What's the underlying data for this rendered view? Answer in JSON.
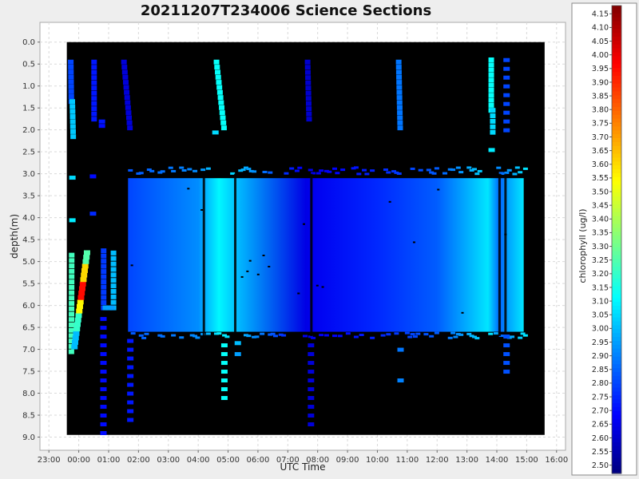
{
  "chart_data": {
    "type": "heatmap",
    "title": "20211207T234006 Science Sections",
    "xlabel": "UTC Time",
    "ylabel": "depth(m)",
    "colorbar_label": "chlorophyll (ug/l)",
    "x_ticks": [
      "23:00",
      "00:00",
      "01:00",
      "02:00",
      "03:00",
      "04:00",
      "05:00",
      "06:00",
      "07:00",
      "08:00",
      "09:00",
      "10:00",
      "11:00",
      "12:00",
      "13:00",
      "14:00",
      "15:00",
      "16:00"
    ],
    "x_range_hours": [
      -1.3,
      16.3
    ],
    "y_ticks": [
      "0.0",
      "0.5",
      "1.0",
      "1.5",
      "2.0",
      "2.5",
      "3.0",
      "3.5",
      "4.0",
      "4.5",
      "5.0",
      "5.5",
      "6.0",
      "6.5",
      "7.0",
      "7.5",
      "8.0",
      "8.5",
      "9.0"
    ],
    "y_range_m": [
      -0.45,
      9.3
    ],
    "colorbar_ticks": [
      "2.50",
      "2.55",
      "2.60",
      "2.65",
      "2.70",
      "2.75",
      "2.80",
      "2.85",
      "2.90",
      "2.95",
      "3.00",
      "3.05",
      "3.10",
      "3.15",
      "3.20",
      "3.25",
      "3.30",
      "3.35",
      "3.40",
      "3.45",
      "3.50",
      "3.55",
      "3.60",
      "3.65",
      "3.70",
      "3.75",
      "3.80",
      "3.85",
      "3.90",
      "3.95",
      "4.00",
      "4.05",
      "4.10",
      "4.15"
    ],
    "colorbar_range": [
      2.47,
      4.18
    ],
    "colormap": "jet",
    "grid": true,
    "background_color": "#000000",
    "section_band": {
      "depth_range": [
        3.1,
        6.6
      ],
      "ends": [
        {
          "hour": 1.65,
          "value": 2.83,
          "start_value": 2.8
        },
        {
          "hour": 4.0,
          "value": 2.92
        },
        {
          "hour": 4.7,
          "value": 3.1
        },
        {
          "hour": 5.3,
          "value": 3.0
        },
        {
          "hour": 7.6,
          "value": 2.64
        },
        {
          "hour": 7.9,
          "value": 2.66
        },
        {
          "hour": 10.0,
          "value": 2.75
        },
        {
          "hour": 12.0,
          "value": 2.84
        },
        {
          "hour": 13.7,
          "value": 3.07
        },
        {
          "hour": 14.1,
          "value": 2.85
        },
        {
          "hour": 14.35,
          "value": 2.95
        },
        {
          "hour": 14.9,
          "value": 3.07
        }
      ]
    },
    "profiles": [
      {
        "hour_start": -0.28,
        "hour_end": -0.26,
        "depth_start": 0.4,
        "depth_end": 1.3,
        "value": 2.8
      },
      {
        "hour_start": -0.23,
        "hour_end": -0.2,
        "depth_start": 1.3,
        "depth_end": 2.1,
        "value": 3.02
      },
      {
        "hour_start": -0.25,
        "hour_end": -0.26,
        "depth_start": 4.8,
        "depth_end": 7.0,
        "value": 3.22
      },
      {
        "hour_start": -0.17,
        "hour_end": 0.27,
        "depth_start": 7.0,
        "depth_end": 4.75,
        "value": 3.5,
        "gradient": [
          3.0,
          3.2,
          3.55,
          3.95,
          3.6,
          3.25
        ]
      },
      {
        "hour_start": 0.5,
        "hour_end": 0.5,
        "depth_start": 0.4,
        "depth_end": 1.7,
        "value": 2.72
      },
      {
        "hour_start": 0.82,
        "hour_end": 0.82,
        "depth_start": 4.7,
        "depth_end": 6.0,
        "value": 2.78
      },
      {
        "hour_start": 1.15,
        "hour_end": 1.15,
        "depth_start": 4.75,
        "depth_end": 6.0,
        "value": 3.0
      },
      {
        "hour_start": 0.88,
        "hour_end": 1.1,
        "depth_start": 6.0,
        "depth_end": 6.0,
        "value": 2.95
      },
      {
        "hour_start": 1.5,
        "hour_end": 1.7,
        "depth_start": 0.4,
        "depth_end": 1.9,
        "value": 2.62
      },
      {
        "hour_start": 4.6,
        "hour_end": 4.85,
        "depth_start": 0.4,
        "depth_end": 1.9,
        "value": 3.12
      },
      {
        "hour_start": 7.65,
        "hour_end": 7.7,
        "depth_start": 0.4,
        "depth_end": 1.7,
        "value": 2.6
      },
      {
        "hour_start": 10.7,
        "hour_end": 10.75,
        "depth_start": 0.4,
        "depth_end": 1.9,
        "value": 2.88
      },
      {
        "hour_start": 13.8,
        "hour_end": 13.8,
        "depth_start": 0.35,
        "depth_end": 1.5,
        "value": 3.12
      },
      {
        "hour_start": 13.85,
        "hour_end": 13.85,
        "depth_start": 1.5,
        "depth_end": 2.0,
        "value": 3.05
      }
    ],
    "dots": [
      {
        "hour": -0.24,
        "depth": 3.08,
        "value": 3.05
      },
      {
        "hour": -0.24,
        "depth": 4.05,
        "value": 3.08
      },
      {
        "hour": 0.45,
        "depth": 3.05,
        "value": 2.7
      },
      {
        "hour": 0.45,
        "depth": 3.9,
        "value": 2.75
      },
      {
        "hour": 0.75,
        "depth": 1.8,
        "value": 2.72
      },
      {
        "hour": 0.75,
        "depth": 1.9,
        "value": 2.7
      },
      {
        "hour": 4.55,
        "depth": 2.05,
        "value": 3.05
      },
      {
        "hour": 13.8,
        "depth": 2.45,
        "value": 3.08
      },
      {
        "hour": 10.75,
        "depth": 7.0,
        "value": 2.88
      },
      {
        "hour": 10.75,
        "depth": 7.7,
        "value": 2.9
      },
      {
        "hour": 5.3,
        "depth": 6.85,
        "value": 3.0
      },
      {
        "hour": 5.3,
        "depth": 7.1,
        "value": 2.95
      }
    ],
    "dotted_columns": [
      {
        "hour": 0.8,
        "depth_start": 6.3,
        "depth_end": 8.9,
        "step": 0.2,
        "value": 2.7
      },
      {
        "hour": 1.7,
        "depth_start": 6.8,
        "depth_end": 8.7,
        "step": 0.2,
        "value": 2.72
      },
      {
        "hour": 4.85,
        "depth_start": 6.9,
        "depth_end": 8.2,
        "step": 0.2,
        "value": 3.12
      },
      {
        "hour": 7.75,
        "depth_start": 6.9,
        "depth_end": 8.7,
        "step": 0.2,
        "value": 2.62
      },
      {
        "hour": 14.3,
        "depth_start": 0.4,
        "depth_end": 2.0,
        "step": 0.2,
        "value": 2.8
      },
      {
        "hour": 14.3,
        "depth_start": 6.7,
        "depth_end": 7.5,
        "step": 0.2,
        "value": 2.82
      }
    ]
  }
}
